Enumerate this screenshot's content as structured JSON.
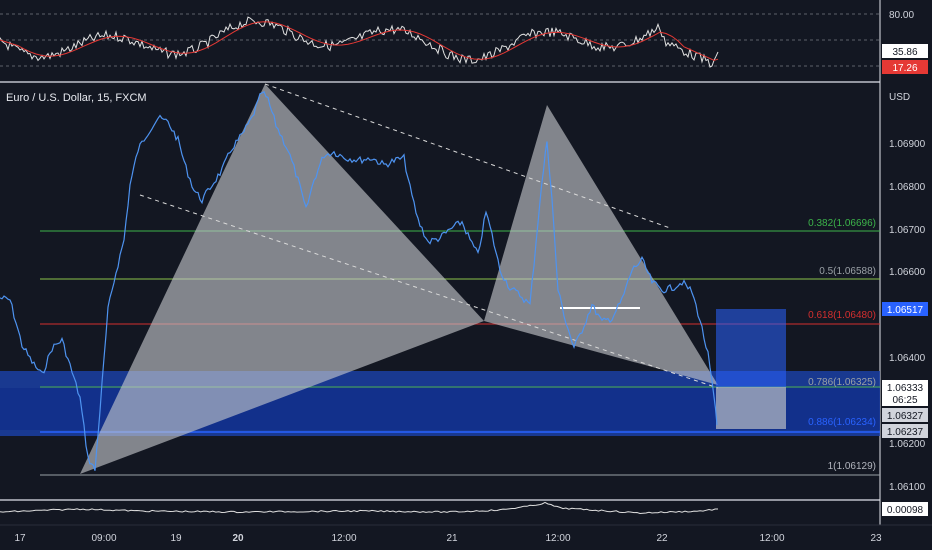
{
  "chart_title": "Euro / U.S. Dollar, 15, FXCM",
  "currency": "USD",
  "colors": {
    "background": "#131722",
    "price_line": "#4e93f0",
    "fib_0382": "#3cb34a",
    "fib_05": "#8bc34a",
    "fib_0618": "#d32f2f",
    "fib_0786": "#4caf50",
    "fib_0886": "#2962ff",
    "fib_1": "#9aa0a6",
    "harmonic_fill": "#c7c9cd",
    "rsi_line": "#e0e0e0",
    "rsi_ma": "#e53935",
    "zone_blue": "#1b3fa3",
    "trade_box": "#2962ff"
  },
  "rsi_panel": {
    "level_label": "80.00",
    "value_1": "35.86",
    "value_2": "17.26"
  },
  "price_axis": {
    "labels": [
      "1.06900",
      "1.06800",
      "1.06700",
      "1.06600",
      "1.06400",
      "1.06200",
      "1.06100"
    ]
  },
  "price_tags": [
    {
      "text": "1.06517",
      "bg": "#2962ff",
      "fg": "#ffffff"
    },
    {
      "text": "1.06333",
      "bg": "#ffffff",
      "fg": "#131722"
    },
    {
      "text": "06:25",
      "bg": "#ffffff",
      "fg": "#131722"
    },
    {
      "text": "1.06327",
      "bg": "#d1d4dc",
      "fg": "#131722"
    },
    {
      "text": "1.06237",
      "bg": "#d1d4dc",
      "fg": "#131722"
    }
  ],
  "fib_labels": {
    "f0382": "0.382(1.06696)",
    "f05": "0.5(1.06588)",
    "f0618": "0.618(1.06480)",
    "f0786": "0.786(1.06325)",
    "f0886": "0.886(1.06234)",
    "f1": "1(1.06129)"
  },
  "bottom_indicator": {
    "value": "0.00098"
  },
  "time_axis": {
    "labels": [
      "17",
      "09:00",
      "19",
      "20",
      "12:00",
      "21",
      "12:00",
      "22",
      "12:00",
      "23"
    ]
  }
}
